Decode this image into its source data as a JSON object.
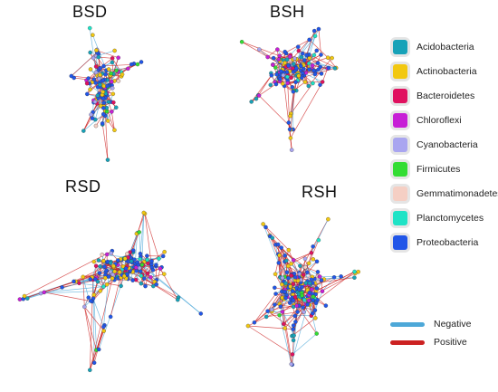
{
  "panels": [
    {
      "key": "bsd",
      "title": "BSD"
    },
    {
      "key": "bsh",
      "title": "BSH"
    },
    {
      "key": "rsd",
      "title": "RSD"
    },
    {
      "key": "rsh",
      "title": "RSH"
    }
  ],
  "phyla_legend": [
    {
      "label": "Acidobacteria",
      "color": "#17a2b8"
    },
    {
      "label": "Actinobacteria",
      "color": "#f2c811"
    },
    {
      "label": "Bacteroidetes",
      "color": "#e0115f"
    },
    {
      "label": "Chloroflexi",
      "color": "#c71fd6"
    },
    {
      "label": "Cyanobacteria",
      "color": "#a9a5f0"
    },
    {
      "label": "Firmicutes",
      "color": "#33dd33"
    },
    {
      "label": "Gemmatimonadetes",
      "color": "#f5cfc4"
    },
    {
      "label": "Planctomycetes",
      "color": "#1fe3c6"
    },
    {
      "label": "Proteobacteria",
      "color": "#2156e8"
    }
  ],
  "edge_legend": [
    {
      "label": "Negative",
      "color": "#4da8d8"
    },
    {
      "label": "Positive",
      "color": "#cc2222"
    }
  ]
}
